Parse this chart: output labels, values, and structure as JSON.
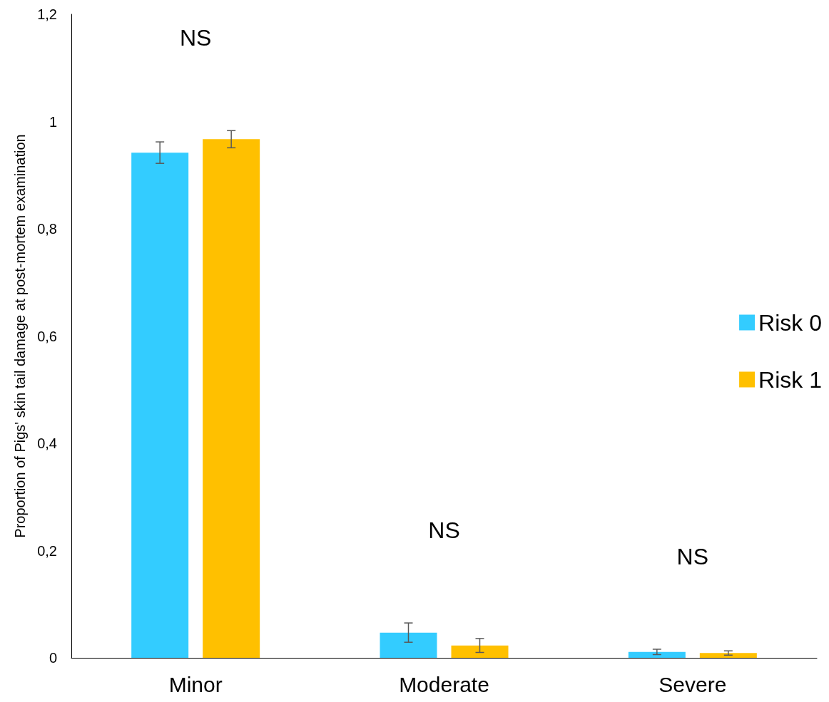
{
  "chart_data": {
    "type": "bar",
    "ylabel": "Proportion of Pigs' skin tail damage at post-mortem examination",
    "categories": [
      "Minor",
      "Moderate",
      "Severe"
    ],
    "series": [
      {
        "name": "Risk 0",
        "color": "#33ccff",
        "values": [
          0.942,
          0.047,
          0.011
        ],
        "errors": [
          0.02,
          0.018,
          0.005
        ]
      },
      {
        "name": "Risk 1",
        "color": "#ffc000",
        "values": [
          0.967,
          0.023,
          0.009
        ],
        "errors": [
          0.016,
          0.013,
          0.004
        ]
      }
    ],
    "ylim": [
      0,
      1.2
    ],
    "yticks": [
      0,
      {
        "value": 0.2,
        "label": "0,2"
      },
      {
        "value": 0.4,
        "label": "0,4"
      },
      {
        "value": 0.6,
        "label": "0,6"
      },
      {
        "value": 0.8,
        "label": "0,8"
      },
      1,
      {
        "value": 1.2,
        "label": "1,2"
      }
    ],
    "annotations": [
      "NS",
      "NS",
      "NS"
    ],
    "grid": false,
    "legend": "right"
  }
}
